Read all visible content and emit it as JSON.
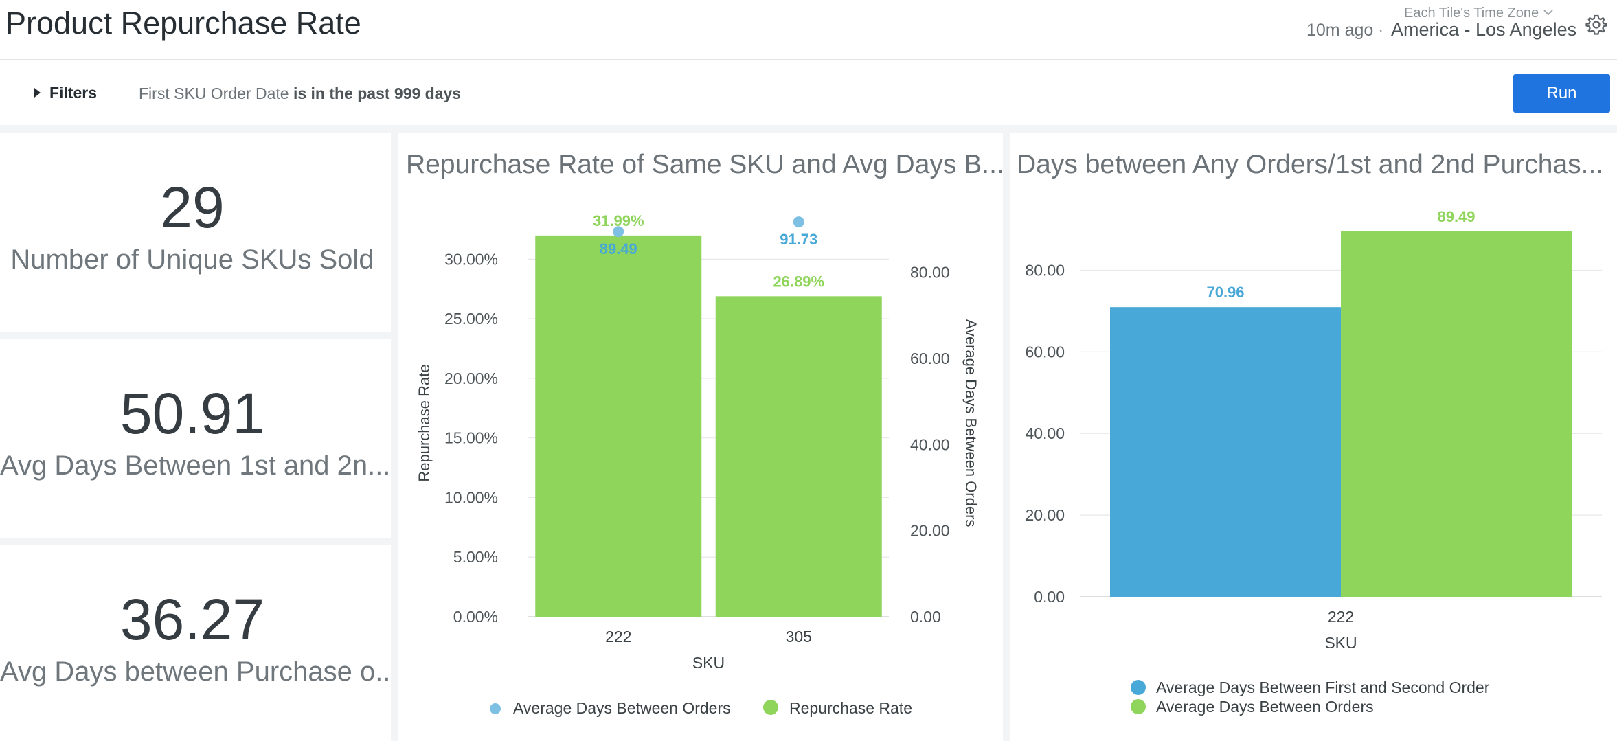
{
  "header": {
    "title": "Product Repurchase Rate",
    "refreshed": "10m ago",
    "separator": "·",
    "timezone_caption": "Each Tile's Time Zone",
    "timezone_value": "America - Los Angeles",
    "icons": {
      "timezone_dropdown": "chevron-down-icon",
      "settings": "gear-icon"
    }
  },
  "filters": {
    "toggle_label": "Filters",
    "field": "First SKU Order Date",
    "condition": "is in the past 999 days",
    "run_label": "Run"
  },
  "kpis": [
    {
      "value": "29",
      "label": "Number of Unique SKUs Sold"
    },
    {
      "value": "50.91",
      "label": "Avg Days Between 1st and 2n..."
    },
    {
      "value": "36.27",
      "label": "Avg Days between Purchase o..."
    }
  ],
  "chart_data": [
    {
      "title": "Repurchase Rate of Same SKU and Avg Days B...",
      "type": "bar",
      "categories": [
        "222",
        "305"
      ],
      "xlabel": "SKU",
      "ylabel": "Repurchase Rate",
      "ylabel_right": "Average Days Between Orders",
      "ylim": [
        0,
        32.5
      ],
      "ylim_right": [
        0,
        90
      ],
      "yticks": [
        "0.00%",
        "5.00%",
        "10.00%",
        "15.00%",
        "20.00%",
        "25.00%",
        "30.00%"
      ],
      "yticks_right": [
        "0.00",
        "20.00",
        "40.00",
        "60.00",
        "80.00"
      ],
      "series": [
        {
          "name": "Repurchase Rate",
          "kind": "bar",
          "axis": "left",
          "color": "#8fd45b",
          "values": [
            31.99,
            26.89
          ],
          "labels": [
            "31.99%",
            "26.89%"
          ]
        },
        {
          "name": "Average Days Between Orders",
          "kind": "scatter",
          "axis": "right",
          "color": "#7ec0e4",
          "label_color": "#48a8d8",
          "values": [
            89.49,
            91.73
          ],
          "labels": [
            "89.49",
            "91.73"
          ]
        }
      ],
      "legend": "bottom",
      "grid": true
    },
    {
      "title": "Days between Any Orders/1st and 2nd Purchas...",
      "type": "bar",
      "categories": [
        "222"
      ],
      "xlabel": "SKU",
      "ylim": [
        0,
        90
      ],
      "yticks": [
        "0.00",
        "20.00",
        "40.00",
        "60.00",
        "80.00"
      ],
      "series": [
        {
          "name": "Average Days Between First and Second Order",
          "color": "#48a8d8",
          "values": [
            70.96
          ],
          "labels": [
            "70.96"
          ]
        },
        {
          "name": "Average Days Between Orders",
          "color": "#8fd45b",
          "values": [
            89.49
          ],
          "labels": [
            "89.49"
          ]
        }
      ],
      "legend": "bottom",
      "grid": true
    }
  ]
}
